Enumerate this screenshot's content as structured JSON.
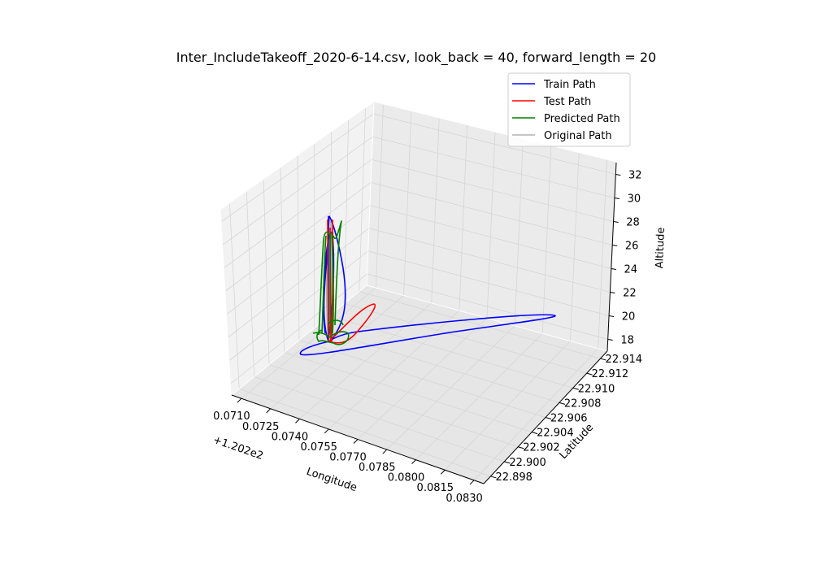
{
  "chart_data": {
    "type": "line3d",
    "title": "Inter_IncludeTakeoff_2020-6-14.csv, look_back = 40, forward_length = 20",
    "xlabel": "Longitude",
    "ylabel": "Latitude",
    "zlabel": "Altitude",
    "x_offset_label": "+1.202e2",
    "x_ticks": [
      "0.0710",
      "0.0725",
      "0.0740",
      "0.0755",
      "0.0770",
      "0.0785",
      "0.0800",
      "0.0815",
      "0.0830"
    ],
    "y_ticks": [
      "22.898",
      "22.900",
      "22.902",
      "22.904",
      "22.906",
      "22.908",
      "22.910",
      "22.912",
      "22.914"
    ],
    "z_ticks": [
      "18",
      "20",
      "22",
      "24",
      "26",
      "28",
      "30",
      "32"
    ],
    "xlim": [
      0.0705,
      0.0835
    ],
    "ylim": [
      22.897,
      22.915
    ],
    "zlim": [
      17,
      33
    ],
    "legend_position": "upper right",
    "series": [
      {
        "name": "Train Path",
        "color": "#0000ff"
      },
      {
        "name": "Test Path",
        "color": "#ff0000"
      },
      {
        "name": "Predicted Path",
        "color": "#008000"
      },
      {
        "name": "Original Path",
        "color": "#b0b0b0"
      }
    ]
  }
}
